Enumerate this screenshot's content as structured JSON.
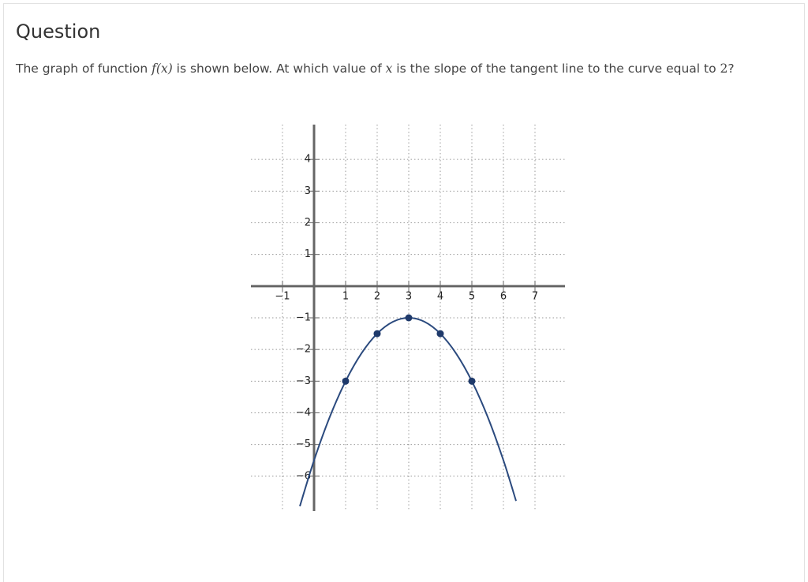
{
  "question": {
    "heading": "Question",
    "prompt": [
      "The graph of function ",
      "f(x)",
      " is shown below. At which value of ",
      "x",
      " is the slope of the tangent line to the curve equal to ",
      "2",
      "?"
    ]
  },
  "chart_data": {
    "type": "line",
    "xlim": [
      -2,
      7.95
    ],
    "ylim": [
      -7.1,
      5.1
    ],
    "xticks": [
      {
        "value": -1,
        "label": "−1"
      },
      1,
      2,
      3,
      4,
      5,
      6,
      7
    ],
    "yticks": [
      4,
      3,
      2,
      1,
      {
        "value": -1,
        "label": "−1"
      },
      {
        "value": -2,
        "label": "−2"
      },
      {
        "value": -3,
        "label": "−3"
      },
      {
        "value": -4,
        "label": "−4"
      },
      {
        "value": -5,
        "label": "−5"
      },
      {
        "value": -6,
        "label": "−6"
      }
    ],
    "grid": true,
    "curve": {
      "color": "#2b4a7e",
      "x": [
        -0.45,
        0,
        0.5,
        1,
        1.5,
        2,
        2.5,
        3,
        3.5,
        4,
        4.5,
        5,
        5.5,
        6,
        6.4
      ],
      "values": [
        -6.95,
        -5.5,
        -4.125,
        -3,
        -2.125,
        -1.5,
        -1.125,
        -1,
        -1.125,
        -1.5,
        -2.125,
        -3,
        -4.125,
        -5.5,
        -6.78
      ]
    },
    "points": {
      "color": "#1f3a6b",
      "x": [
        1,
        2,
        3,
        4,
        5
      ],
      "values": [
        -3,
        -1.5,
        -1,
        -1.5,
        -3
      ]
    }
  }
}
